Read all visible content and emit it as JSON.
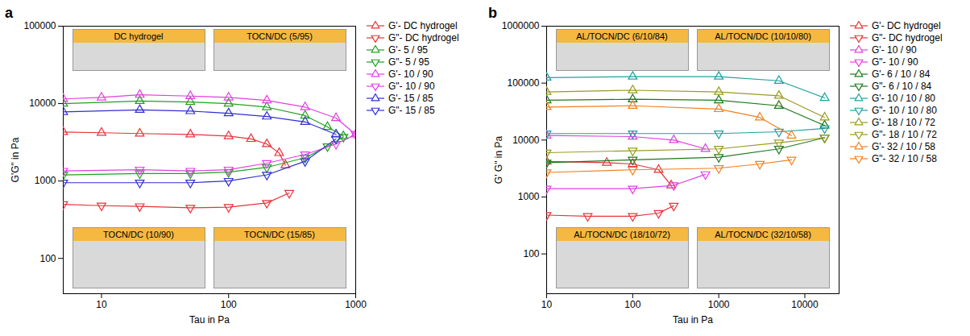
{
  "chart_data": [
    {
      "panel": "a",
      "type": "line",
      "log": true,
      "x_label": "Tau in Pa",
      "y_label": "G'G\" in Pa",
      "xlim": [
        5,
        1000
      ],
      "xticks": [
        10,
        100,
        1000
      ],
      "ylim": [
        35,
        100000
      ],
      "yticks": [
        100,
        1000,
        10000,
        100000
      ],
      "inset_labels": [
        "DC hydrogel",
        "TOCN/DC (5/95)",
        "TOCN/DC (10/90)",
        "TOCN/DC (15/85)"
      ],
      "series": [
        {
          "name": "G'- DC hydrogel",
          "color": "#e8333a",
          "marker": "triangle-up",
          "x": [
            5,
            10,
            20,
            50,
            100,
            150,
            200,
            250,
            280
          ],
          "values": [
            4300,
            4200,
            4100,
            4000,
            3800,
            3500,
            3000,
            2300,
            1600
          ]
        },
        {
          "name": "G\"- DC hydrogel",
          "color": "#e8333a",
          "marker": "triangle-down",
          "x": [
            5,
            10,
            20,
            50,
            100,
            200,
            300
          ],
          "values": [
            500,
            480,
            470,
            450,
            460,
            520,
            700
          ]
        },
        {
          "name": "G'- 5 / 95",
          "color": "#22a022",
          "marker": "triangle-up",
          "x": [
            5,
            20,
            50,
            100,
            200,
            400,
            600,
            800
          ],
          "values": [
            10000,
            10800,
            10500,
            10000,
            9000,
            7000,
            5000,
            3800
          ]
        },
        {
          "name": "G\"- 5 / 95",
          "color": "#22a022",
          "marker": "triangle-down",
          "x": [
            5,
            20,
            50,
            100,
            200,
            400,
            600,
            800
          ],
          "values": [
            1200,
            1250,
            1250,
            1300,
            1500,
            2000,
            2800,
            3700
          ]
        },
        {
          "name": "G'- 10 / 90",
          "color": "#e040e0",
          "marker": "triangle-up",
          "x": [
            5,
            10,
            20,
            50,
            100,
            200,
            400,
            700,
            1000
          ],
          "values": [
            11500,
            12000,
            13000,
            12500,
            12000,
            11000,
            9000,
            6500,
            4000
          ]
        },
        {
          "name": "G\"- 10 / 90",
          "color": "#e040e0",
          "marker": "triangle-down",
          "x": [
            5,
            20,
            50,
            100,
            200,
            400,
            700,
            1000
          ],
          "values": [
            1350,
            1400,
            1350,
            1400,
            1700,
            2200,
            3000,
            4000
          ]
        },
        {
          "name": "G'- 15 / 85",
          "color": "#3030d0",
          "marker": "triangle-up",
          "x": [
            5,
            20,
            50,
            100,
            200,
            400,
            700
          ],
          "values": [
            7800,
            8300,
            8000,
            7500,
            6800,
            5800,
            4000
          ]
        },
        {
          "name": "G\"- 15 / 85",
          "color": "#3030d0",
          "marker": "triangle-down",
          "x": [
            5,
            20,
            50,
            100,
            200,
            400,
            700
          ],
          "values": [
            950,
            950,
            950,
            1000,
            1200,
            1800,
            3500
          ]
        }
      ]
    },
    {
      "panel": "b",
      "type": "line",
      "log": true,
      "x_label": "Tau in Pa",
      "y_label": "G' G\" in Pa",
      "xlim": [
        10,
        25000
      ],
      "xticks": [
        10,
        100,
        1000,
        10000
      ],
      "ylim": [
        20,
        1000000
      ],
      "yticks": [
        100,
        1000,
        10000,
        100000,
        1000000
      ],
      "inset_labels": [
        "AL/TOCN/DC (6/10/84)",
        "AL/TOCN/DC (10/10/80)",
        "AL/TOCN/DC (18/10/72)",
        "AL/TOCN/DC (32/10/58)"
      ],
      "series": [
        {
          "name": "G'- DC hydrogel",
          "color": "#e8333a",
          "marker": "triangle-up",
          "x": [
            10,
            50,
            100,
            200,
            280
          ],
          "values": [
            4200,
            4000,
            3800,
            3000,
            1600
          ]
        },
        {
          "name": "G\"- DC hydrogel",
          "color": "#e8333a",
          "marker": "triangle-down",
          "x": [
            10,
            30,
            100,
            200,
            300
          ],
          "values": [
            480,
            460,
            460,
            520,
            700
          ]
        },
        {
          "name": "G'- 10 / 90",
          "color": "#e040e0",
          "marker": "triangle-up",
          "x": [
            10,
            100,
            300,
            700
          ],
          "values": [
            12000,
            11500,
            10000,
            7000
          ]
        },
        {
          "name": "G\"- 10 / 90",
          "color": "#e040e0",
          "marker": "triangle-down",
          "x": [
            10,
            100,
            300,
            700
          ],
          "values": [
            1400,
            1400,
            1600,
            2500
          ]
        },
        {
          "name": "G'- 6 / 10 / 84",
          "color": "#1a7a1a",
          "marker": "triangle-up",
          "x": [
            10,
            100,
            1000,
            5000,
            17000
          ],
          "values": [
            50000,
            52000,
            50000,
            40000,
            18000
          ]
        },
        {
          "name": "G\"- 6 / 10 / 84",
          "color": "#1a7a1a",
          "marker": "triangle-down",
          "x": [
            10,
            100,
            1000,
            5000,
            17000
          ],
          "values": [
            4000,
            4500,
            5000,
            7000,
            11000
          ]
        },
        {
          "name": "G'- 10 / 10 / 80",
          "color": "#20a0a0",
          "marker": "triangle-up",
          "x": [
            10,
            100,
            1000,
            5000,
            17000
          ],
          "values": [
            125000,
            130000,
            130000,
            110000,
            55000
          ]
        },
        {
          "name": "G\"- 10 / 10 / 80",
          "color": "#20a0a0",
          "marker": "triangle-down",
          "x": [
            10,
            100,
            1000,
            5000,
            17000
          ],
          "values": [
            13000,
            13000,
            13000,
            14000,
            16000
          ]
        },
        {
          "name": "G'- 18 / 10 / 72",
          "color": "#9a9a20",
          "marker": "triangle-up",
          "x": [
            10,
            100,
            1000,
            5000,
            17000
          ],
          "values": [
            70000,
            75000,
            70000,
            60000,
            25000
          ]
        },
        {
          "name": "G\"- 18 / 10 / 72",
          "color": "#9a9a20",
          "marker": "triangle-down",
          "x": [
            10,
            100,
            1000,
            5000,
            17000
          ],
          "values": [
            6000,
            6500,
            7000,
            9000,
            11000
          ]
        },
        {
          "name": "G'- 32 / 10 / 58",
          "color": "#f08020",
          "marker": "triangle-up",
          "x": [
            10,
            100,
            1000,
            3000,
            7000
          ],
          "values": [
            38000,
            40000,
            35000,
            25000,
            12000
          ]
        },
        {
          "name": "G\"- 32 / 10 / 58",
          "color": "#f08020",
          "marker": "triangle-down",
          "x": [
            10,
            100,
            1000,
            3000,
            7000
          ],
          "values": [
            2700,
            3000,
            3200,
            3800,
            4500
          ]
        }
      ]
    }
  ]
}
